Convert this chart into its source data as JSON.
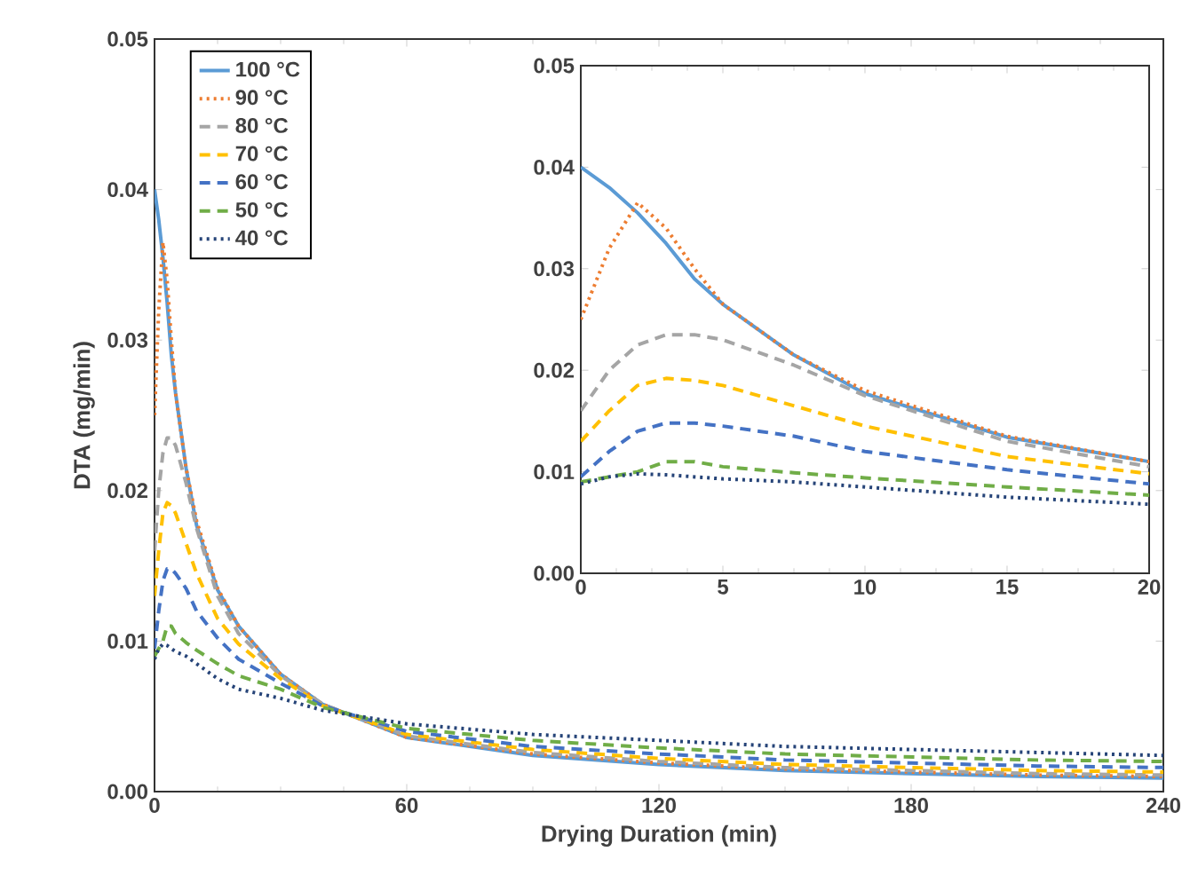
{
  "chart_data": [
    {
      "type": "line",
      "xlabel": "Drying Duration (min)",
      "ylabel": "DTA (mg/min)",
      "xlim": [
        0,
        240
      ],
      "ylim": [
        0,
        0.05
      ],
      "xticks": [
        0,
        60,
        120,
        180,
        240
      ],
      "yticks": [
        {
          "value": 0,
          "label": "0.00"
        },
        {
          "value": 0.01,
          "label": "0.01"
        },
        {
          "value": 0.02,
          "label": "0.02"
        },
        {
          "value": 0.03,
          "label": "0.03"
        },
        {
          "value": 0.04,
          "label": "0.04"
        },
        {
          "value": 0.05,
          "label": "0.05"
        }
      ],
      "legend": "top left",
      "x": [
        0,
        1,
        2,
        3,
        4,
        5,
        7.5,
        10,
        15,
        20,
        30,
        40,
        60,
        90,
        120,
        150,
        180,
        210,
        240
      ],
      "series": [
        {
          "name": "100 °C",
          "color": "#5b9bd5",
          "line_style": "solid",
          "values": [
            0.04,
            0.038,
            0.0355,
            0.0325,
            0.029,
            0.0265,
            0.0215,
            0.0177,
            0.0134,
            0.011,
            0.0078,
            0.0058,
            0.0036,
            0.0024,
            0.0018,
            0.0014,
            0.0012,
            0.001,
            0.0009
          ]
        },
        {
          "name": "90 °C",
          "color": "#ed7d31",
          "line_style": "dotted",
          "values": [
            0.025,
            0.032,
            0.0365,
            0.034,
            0.03,
            0.0265,
            0.0215,
            0.018,
            0.0135,
            0.011,
            0.0078,
            0.0058,
            0.0036,
            0.0025,
            0.0019,
            0.0015,
            0.0013,
            0.0011,
            0.001
          ]
        },
        {
          "name": "80 °C",
          "color": "#a5a5a5",
          "line_style": "dashed",
          "values": [
            0.016,
            0.02,
            0.0225,
            0.0235,
            0.0235,
            0.023,
            0.0205,
            0.0175,
            0.013,
            0.0105,
            0.0077,
            0.0058,
            0.0037,
            0.0026,
            0.002,
            0.0016,
            0.0014,
            0.0012,
            0.0011
          ]
        },
        {
          "name": "70 °C",
          "color": "#ffc000",
          "line_style": "dashed",
          "values": [
            0.013,
            0.016,
            0.0185,
            0.0192,
            0.019,
            0.0185,
            0.0165,
            0.0145,
            0.0115,
            0.0098,
            0.0075,
            0.0057,
            0.0038,
            0.0028,
            0.0022,
            0.0018,
            0.0016,
            0.0014,
            0.0013
          ]
        },
        {
          "name": "60 °C",
          "color": "#4472c4",
          "line_style": "dashed",
          "values": [
            0.0095,
            0.012,
            0.014,
            0.0148,
            0.0148,
            0.0145,
            0.0135,
            0.012,
            0.0102,
            0.0088,
            0.0072,
            0.0057,
            0.004,
            0.003,
            0.0025,
            0.0021,
            0.0019,
            0.0017,
            0.0016
          ]
        },
        {
          "name": "50 °C",
          "color": "#70ad47",
          "line_style": "dashed",
          "values": [
            0.009,
            0.0095,
            0.01,
            0.011,
            0.011,
            0.0105,
            0.0099,
            0.0094,
            0.0085,
            0.0077,
            0.0068,
            0.0056,
            0.0042,
            0.0034,
            0.0029,
            0.0025,
            0.0023,
            0.0021,
            0.002
          ]
        },
        {
          "name": "40 °C",
          "color": "#264478",
          "line_style": "dotted",
          "values": [
            0.0088,
            0.0095,
            0.0098,
            0.0097,
            0.0095,
            0.0093,
            0.009,
            0.0085,
            0.0075,
            0.0068,
            0.0062,
            0.0054,
            0.0045,
            0.0038,
            0.0034,
            0.003,
            0.0028,
            0.0026,
            0.0024
          ]
        }
      ]
    },
    {
      "type": "line",
      "xlim": [
        0,
        20
      ],
      "ylim": [
        0,
        0.05
      ],
      "xticks": [
        0,
        5,
        10,
        15,
        20
      ],
      "yticks": [
        {
          "value": 0,
          "label": "0.00"
        },
        {
          "value": 0.01,
          "label": "0.01"
        },
        {
          "value": 0.02,
          "label": "0.02"
        },
        {
          "value": 0.03,
          "label": "0.03"
        },
        {
          "value": 0.04,
          "label": "0.04"
        },
        {
          "value": 0.05,
          "label": "0.05"
        }
      ],
      "x": [
        0,
        1,
        2,
        3,
        4,
        5,
        7.5,
        10,
        15,
        20
      ],
      "series": [
        {
          "color": "#5b9bd5",
          "line_style": "solid",
          "values": [
            0.04,
            0.038,
            0.0355,
            0.0325,
            0.029,
            0.0265,
            0.0215,
            0.0177,
            0.0134,
            0.011
          ]
        },
        {
          "color": "#ed7d31",
          "line_style": "dotted",
          "values": [
            0.025,
            0.032,
            0.0365,
            0.034,
            0.03,
            0.0265,
            0.0215,
            0.018,
            0.0135,
            0.011
          ]
        },
        {
          "color": "#a5a5a5",
          "line_style": "dashed",
          "values": [
            0.016,
            0.02,
            0.0225,
            0.0235,
            0.0235,
            0.023,
            0.0205,
            0.0175,
            0.013,
            0.0105
          ]
        },
        {
          "color": "#ffc000",
          "line_style": "dashed",
          "values": [
            0.013,
            0.016,
            0.0185,
            0.0192,
            0.019,
            0.0185,
            0.0165,
            0.0145,
            0.0115,
            0.0098
          ]
        },
        {
          "color": "#4472c4",
          "line_style": "dashed",
          "values": [
            0.0095,
            0.012,
            0.014,
            0.0148,
            0.0148,
            0.0145,
            0.0135,
            0.012,
            0.0102,
            0.0088
          ]
        },
        {
          "color": "#70ad47",
          "line_style": "dashed",
          "values": [
            0.009,
            0.0095,
            0.01,
            0.011,
            0.011,
            0.0105,
            0.0099,
            0.0094,
            0.0085,
            0.0077
          ]
        },
        {
          "color": "#264478",
          "line_style": "dotted",
          "values": [
            0.0088,
            0.0095,
            0.0098,
            0.0097,
            0.0095,
            0.0093,
            0.009,
            0.0085,
            0.0075,
            0.0068
          ]
        }
      ]
    }
  ]
}
